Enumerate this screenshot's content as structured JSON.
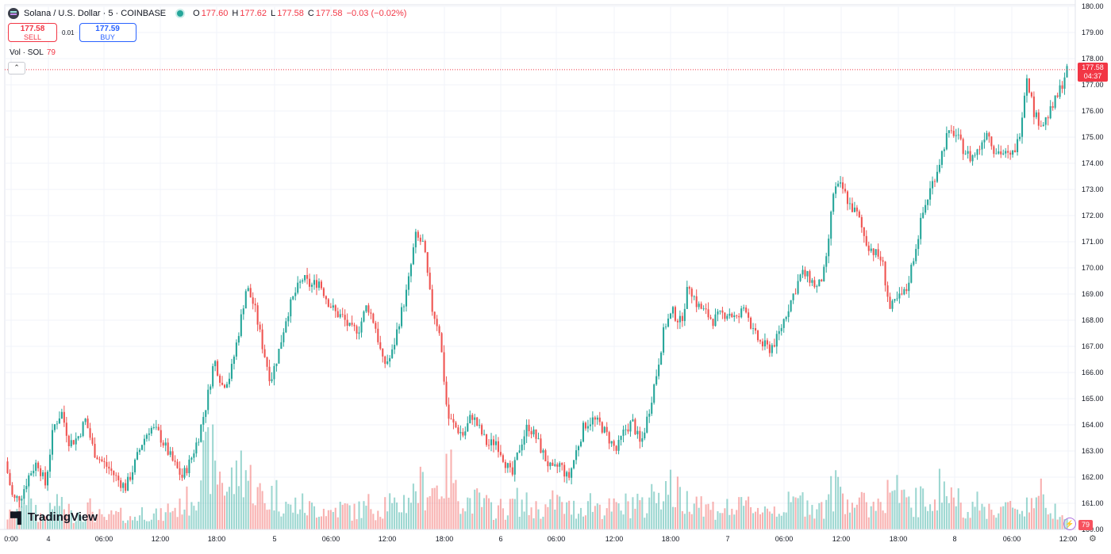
{
  "header": {
    "symbol_title": "Solana / U.S. Dollar · 5 · COINBASE",
    "ohlc": {
      "o_key": "O",
      "o_val": "177.60",
      "h_key": "H",
      "h_val": "177.62",
      "l_key": "L",
      "l_val": "177.58",
      "c_key": "C",
      "c_val": "177.58",
      "change": "−0.03 (−0.02%)"
    }
  },
  "trade": {
    "sell_price": "177.58",
    "sell_label": "SELL",
    "spread": "0.01",
    "buy_price": "177.59",
    "buy_label": "BUY"
  },
  "volume_legend": {
    "label": "Vol · SOL",
    "value": "79"
  },
  "collapse_icon": "chevron-up-icon",
  "branding": {
    "logo_text": "TradingView"
  },
  "last_price_tag": {
    "price": "177.58",
    "countdown": "04:37"
  },
  "volume_tag": "79",
  "colors": {
    "up": "#26a69a",
    "down": "#ef5350",
    "last_price": "#f23645",
    "grid": "#f0f3fa"
  },
  "chart_data": {
    "type": "candlestick",
    "interval": "5m",
    "y_axis_ticks": [
      "160.00",
      "161.00",
      "162.00",
      "163.00",
      "164.00",
      "165.00",
      "166.00",
      "167.00",
      "168.00",
      "169.00",
      "170.00",
      "171.00",
      "172.00",
      "173.00",
      "174.00",
      "175.00",
      "176.00",
      "177.00",
      "178.00",
      "179.00",
      "180.00"
    ],
    "ylim": [
      160,
      180
    ],
    "x_axis_ticks": [
      "0:00",
      "4",
      "06:00",
      "12:00",
      "18:00",
      "5",
      "06:00",
      "12:00",
      "18:00",
      "6",
      "06:00",
      "12:00",
      "18:00",
      "7",
      "06:00",
      "12:00",
      "18:00",
      "8",
      "06:00",
      "12:00"
    ],
    "last_price": 177.58,
    "price_path": [
      [
        0,
        162.6
      ],
      [
        1,
        161.1
      ],
      [
        2,
        161.3
      ],
      [
        3,
        162.1
      ],
      [
        4,
        162.6
      ],
      [
        5,
        161.7
      ],
      [
        6,
        163.9
      ],
      [
        7,
        164.5
      ],
      [
        8,
        163.3
      ],
      [
        9,
        163.5
      ],
      [
        10,
        164.2
      ],
      [
        11,
        163.0
      ],
      [
        12,
        162.6
      ],
      [
        13,
        162.3
      ],
      [
        14,
        161.9
      ],
      [
        15,
        161.6
      ],
      [
        16,
        162.4
      ],
      [
        17,
        163.3
      ],
      [
        18,
        163.9
      ],
      [
        19,
        163.7
      ],
      [
        20,
        163.1
      ],
      [
        21,
        162.5
      ],
      [
        22,
        162.0
      ],
      [
        23,
        162.6
      ],
      [
        24,
        163.5
      ],
      [
        25,
        164.8
      ],
      [
        26,
        166.5
      ],
      [
        27,
        165.5
      ],
      [
        28,
        165.9
      ],
      [
        29,
        167.5
      ],
      [
        30,
        169.3
      ],
      [
        31,
        168.5
      ],
      [
        32,
        167.0
      ],
      [
        33,
        165.7
      ],
      [
        34,
        166.8
      ],
      [
        35,
        168.2
      ],
      [
        36,
        169.0
      ],
      [
        37,
        169.6
      ],
      [
        38,
        169.3
      ],
      [
        39,
        169.5
      ],
      [
        40,
        168.8
      ],
      [
        41,
        168.3
      ],
      [
        42,
        168.1
      ],
      [
        43,
        167.6
      ],
      [
        44,
        167.7
      ],
      [
        45,
        168.6
      ],
      [
        46,
        167.8
      ],
      [
        47,
        166.3
      ],
      [
        48,
        166.6
      ],
      [
        49,
        168.0
      ],
      [
        50,
        169.2
      ],
      [
        51,
        171.2
      ],
      [
        52,
        170.9
      ],
      [
        53,
        168.5
      ],
      [
        54,
        167.6
      ],
      [
        55,
        164.3
      ],
      [
        56,
        163.9
      ],
      [
        57,
        163.6
      ],
      [
        58,
        164.4
      ],
      [
        59,
        163.8
      ],
      [
        60,
        163.2
      ],
      [
        61,
        163.4
      ],
      [
        62,
        162.7
      ],
      [
        63,
        162.0
      ],
      [
        64,
        163.2
      ],
      [
        65,
        164.0
      ],
      [
        66,
        163.5
      ],
      [
        67,
        162.8
      ],
      [
        68,
        162.2
      ],
      [
        69,
        162.5
      ],
      [
        70,
        161.9
      ],
      [
        71,
        163.0
      ],
      [
        72,
        164.0
      ],
      [
        73,
        164.2
      ],
      [
        74,
        164.0
      ],
      [
        75,
        163.5
      ],
      [
        76,
        163.0
      ],
      [
        77,
        163.8
      ],
      [
        78,
        164.1
      ],
      [
        79,
        163.2
      ],
      [
        80,
        164.5
      ],
      [
        81,
        166.0
      ],
      [
        82,
        167.8
      ],
      [
        83,
        168.3
      ],
      [
        84,
        167.9
      ],
      [
        85,
        169.4
      ],
      [
        86,
        168.6
      ],
      [
        87,
        168.3
      ],
      [
        88,
        168.0
      ],
      [
        89,
        168.2
      ],
      [
        90,
        168.3
      ],
      [
        91,
        168.0
      ],
      [
        92,
        168.6
      ],
      [
        93,
        167.5
      ],
      [
        94,
        167.1
      ],
      [
        95,
        166.9
      ],
      [
        96,
        167.3
      ],
      [
        97,
        168.2
      ],
      [
        98,
        169.0
      ],
      [
        99,
        169.8
      ],
      [
        100,
        169.6
      ],
      [
        101,
        169.2
      ],
      [
        102,
        170.0
      ],
      [
        103,
        173.0
      ],
      [
        104,
        173.1
      ],
      [
        105,
        172.4
      ],
      [
        106,
        172.0
      ],
      [
        107,
        171.0
      ],
      [
        108,
        170.6
      ],
      [
        109,
        170.3
      ],
      [
        110,
        168.4
      ],
      [
        111,
        168.8
      ],
      [
        112,
        169.1
      ],
      [
        113,
        170.5
      ],
      [
        114,
        172.0
      ],
      [
        115,
        173.0
      ],
      [
        116,
        173.9
      ],
      [
        117,
        175.0
      ],
      [
        118,
        175.2
      ],
      [
        119,
        174.6
      ],
      [
        120,
        174.2
      ],
      [
        121,
        174.5
      ],
      [
        122,
        175.3
      ],
      [
        123,
        174.5
      ],
      [
        124,
        174.4
      ],
      [
        125,
        174.2
      ],
      [
        126,
        174.9
      ],
      [
        127,
        177.4
      ],
      [
        128,
        175.8
      ],
      [
        129,
        175.5
      ],
      [
        130,
        176.0
      ],
      [
        131,
        176.7
      ],
      [
        132,
        177.6
      ]
    ],
    "volume_profile_relative": [
      0.2,
      0.3,
      0.5,
      0.3,
      0.2,
      0.25,
      0.4,
      0.3,
      0.2,
      0.25,
      0.3,
      0.2,
      0.15,
      0.2,
      0.2,
      0.15,
      0.2,
      0.25,
      0.2,
      0.2,
      0.3,
      0.3,
      0.4,
      0.5,
      0.9,
      1.0,
      0.8,
      0.6,
      0.7,
      0.9,
      0.7,
      0.5,
      0.4,
      0.5,
      0.4,
      0.3,
      0.35,
      0.3,
      0.3,
      0.3,
      0.25,
      0.3,
      0.3,
      0.25,
      0.3,
      0.35,
      0.3,
      0.4,
      0.3,
      0.4,
      0.5,
      0.6,
      0.6,
      0.6,
      0.7,
      0.8,
      0.5,
      0.4,
      0.4,
      0.35,
      0.3,
      0.3,
      0.3,
      0.4,
      0.35,
      0.3,
      0.3,
      0.3,
      0.4,
      0.3,
      0.3,
      0.3,
      0.4,
      0.35,
      0.3,
      0.3,
      0.3,
      0.35,
      0.4,
      0.3,
      0.5,
      0.6,
      0.6,
      0.5,
      0.4,
      0.5,
      0.4,
      0.3,
      0.3,
      0.3,
      0.3,
      0.3,
      0.35,
      0.3,
      0.3,
      0.3,
      0.3,
      0.35,
      0.4,
      0.4,
      0.35,
      0.3,
      0.5,
      0.6,
      0.5,
      0.4,
      0.35,
      0.35,
      0.4,
      0.5,
      0.6,
      0.4,
      0.35,
      0.4,
      0.4,
      0.5,
      0.6,
      0.5,
      0.4,
      0.35,
      0.35,
      0.3,
      0.3,
      0.3,
      0.3,
      0.3,
      0.3,
      0.4,
      0.5,
      0.35,
      0.3,
      0.3,
      0.2
    ]
  }
}
